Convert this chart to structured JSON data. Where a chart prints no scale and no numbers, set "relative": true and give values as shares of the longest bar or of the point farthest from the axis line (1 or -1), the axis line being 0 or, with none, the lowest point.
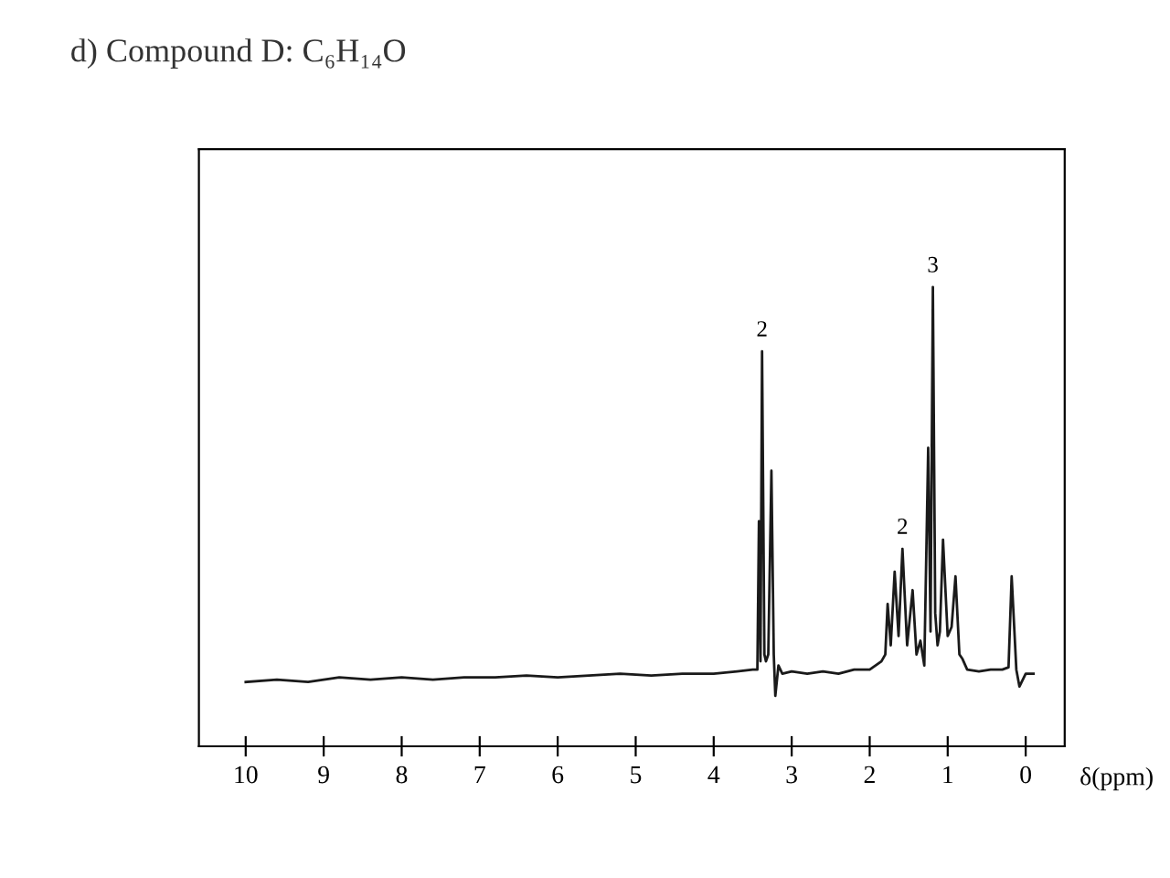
{
  "chart_data": {
    "type": "line",
    "title": "d) Compound D: C₆H₁₄O",
    "xlabel": "δ(ppm)",
    "relative": true,
    "xlim": [
      10.6,
      -0.5
    ],
    "xticks": [
      10,
      9,
      8,
      7,
      6,
      5,
      4,
      3,
      2,
      1,
      0
    ],
    "series": [
      {
        "color": "#1a1a1a",
        "x": [
          10.0,
          9.6,
          9.2,
          8.8,
          8.4,
          8.0,
          7.6,
          7.2,
          6.8,
          6.4,
          6.0,
          5.6,
          5.2,
          4.8,
          4.4,
          4.0,
          3.7,
          3.5,
          3.44,
          3.42,
          3.4,
          3.38,
          3.35,
          3.33,
          3.3,
          3.26,
          3.23,
          3.21,
          3.17,
          3.12,
          3.0,
          2.8,
          2.6,
          2.4,
          2.2,
          2.0,
          1.85,
          1.8,
          1.77,
          1.73,
          1.68,
          1.63,
          1.58,
          1.52,
          1.45,
          1.4,
          1.35,
          1.3,
          1.25,
          1.22,
          1.19,
          1.16,
          1.13,
          1.1,
          1.06,
          1.0,
          0.95,
          0.9,
          0.85,
          0.81,
          0.75,
          0.6,
          0.45,
          0.3,
          0.22,
          0.18,
          0.12,
          0.08,
          0.0,
          -0.1
        ],
        "values": [
          0.14,
          0.145,
          0.14,
          0.15,
          0.145,
          0.15,
          0.145,
          0.15,
          0.15,
          0.154,
          0.15,
          0.154,
          0.158,
          0.154,
          0.158,
          0.158,
          0.163,
          0.167,
          0.167,
          0.49,
          0.185,
          0.86,
          0.2,
          0.185,
          0.2,
          0.6,
          0.2,
          0.11,
          0.176,
          0.158,
          0.163,
          0.158,
          0.163,
          0.158,
          0.167,
          0.167,
          0.185,
          0.2,
          0.31,
          0.22,
          0.38,
          0.24,
          0.43,
          0.22,
          0.34,
          0.2,
          0.23,
          0.176,
          0.65,
          0.25,
          1.0,
          0.29,
          0.22,
          0.25,
          0.45,
          0.24,
          0.26,
          0.37,
          0.2,
          0.19,
          0.167,
          0.163,
          0.167,
          0.167,
          0.172,
          0.37,
          0.167,
          0.13,
          0.158,
          0.158
        ]
      }
    ],
    "annotations": [
      {
        "text": "2",
        "x": 3.38,
        "y": 0.86
      },
      {
        "text": "2",
        "x": 1.58,
        "y": 0.43
      },
      {
        "text": "3",
        "x": 1.19,
        "y": 1.0
      }
    ]
  }
}
